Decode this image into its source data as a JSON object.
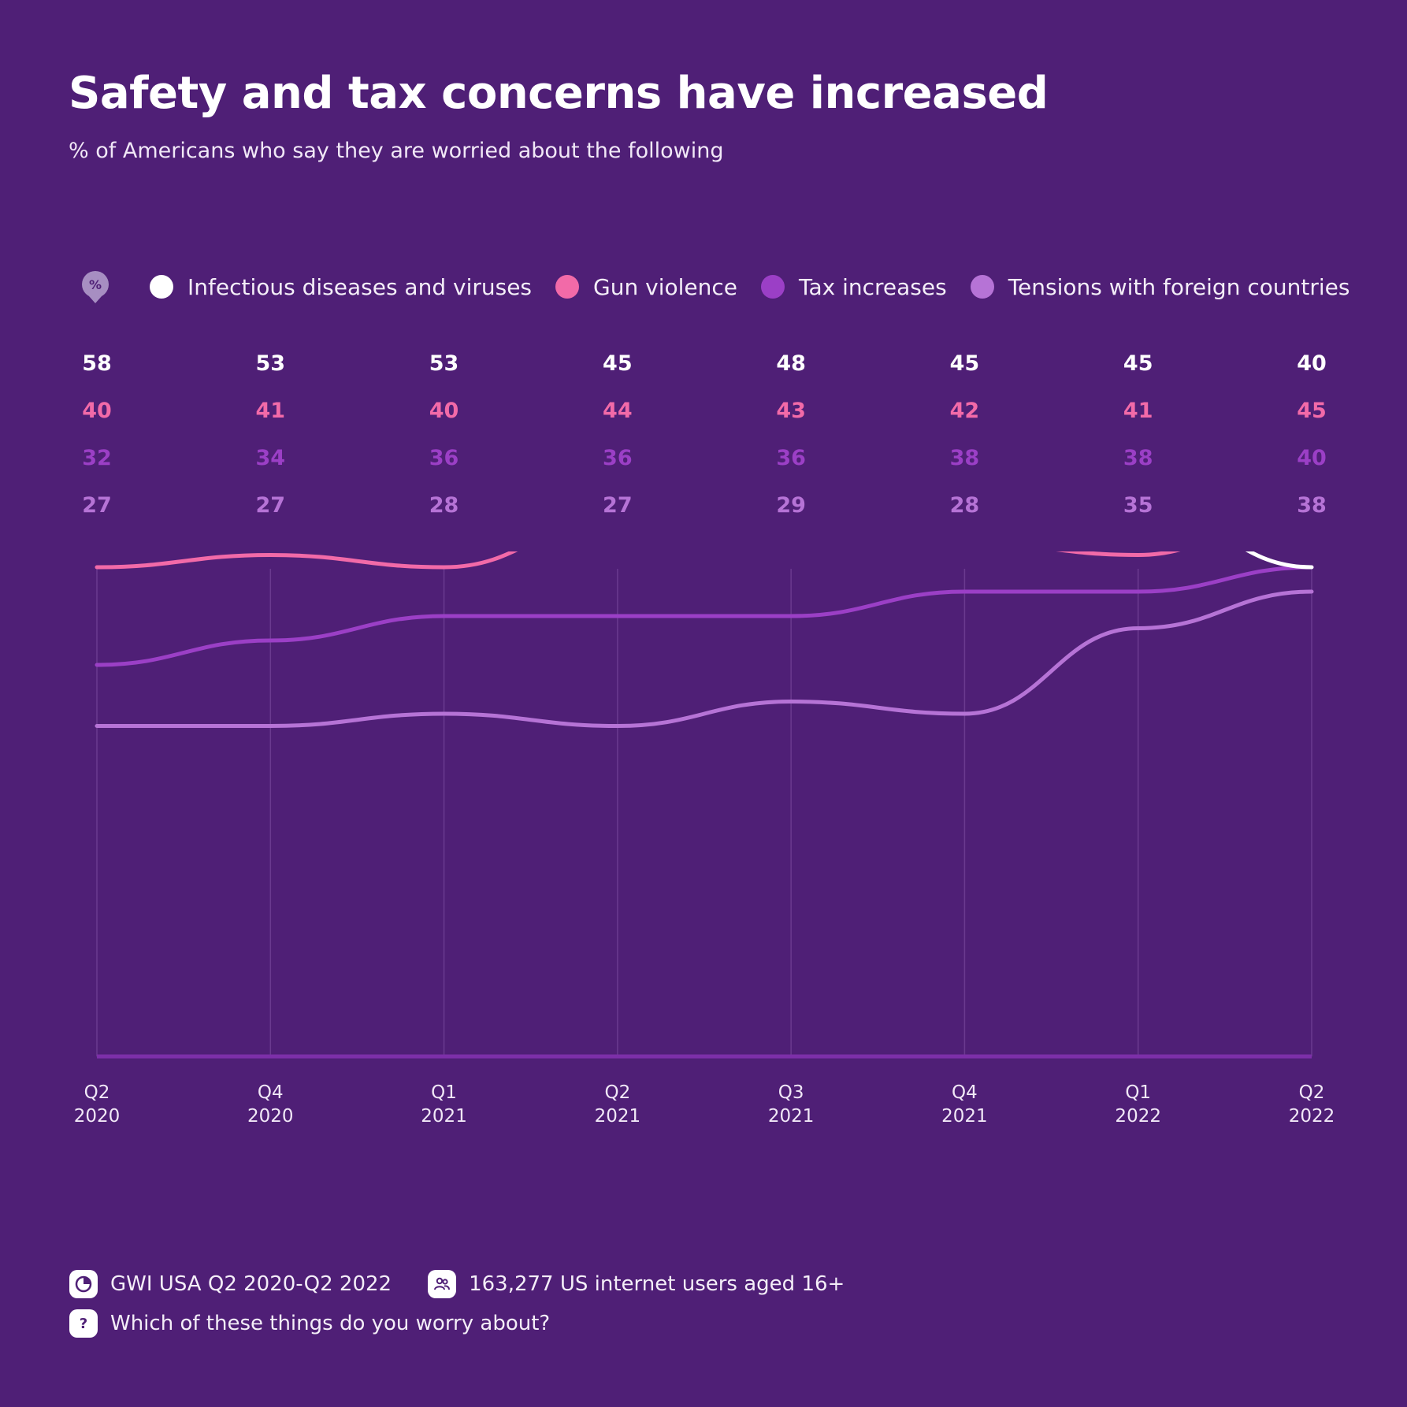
{
  "header": {
    "title": "Safety and tax concerns have increased",
    "subtitle": "% of Americans who say they are worried about the following"
  },
  "badge": {
    "label": "%"
  },
  "footer": {
    "source": "GWI USA Q2 2020-Q2 2022",
    "sample": "163,277 US internet users aged 16+",
    "question": "Which of these things do you worry about?"
  },
  "chart_data": {
    "type": "line",
    "title": "Safety and tax concerns have increased",
    "subtitle": "% of Americans who say they are worried about the following",
    "categories": [
      [
        "Q2",
        "2020"
      ],
      [
        "Q4",
        "2020"
      ],
      [
        "Q1",
        "2021"
      ],
      [
        "Q2",
        "2021"
      ],
      [
        "Q3",
        "2021"
      ],
      [
        "Q4",
        "2021"
      ],
      [
        "Q1",
        "2022"
      ],
      [
        "Q2",
        "2022"
      ]
    ],
    "series": [
      {
        "name": "Infectious diseases and viruses",
        "color": "#ffffff",
        "values": [
          58,
          53,
          53,
          45,
          48,
          45,
          45,
          40
        ]
      },
      {
        "name": "Gun violence",
        "color": "#f26aa8",
        "values": [
          40,
          41,
          40,
          44,
          43,
          42,
          41,
          45
        ]
      },
      {
        "name": "Tax increases",
        "color": "#9b3fc6",
        "values": [
          32,
          34,
          36,
          36,
          36,
          38,
          38,
          40
        ]
      },
      {
        "name": "Tensions with foreign countries",
        "color": "#b673d6",
        "values": [
          27,
          27,
          28,
          27,
          29,
          28,
          35,
          38
        ]
      }
    ],
    "ylim": [
      20,
      60
    ],
    "grid": "vertical",
    "legend": "top",
    "data_labels": "table-above-chart"
  }
}
